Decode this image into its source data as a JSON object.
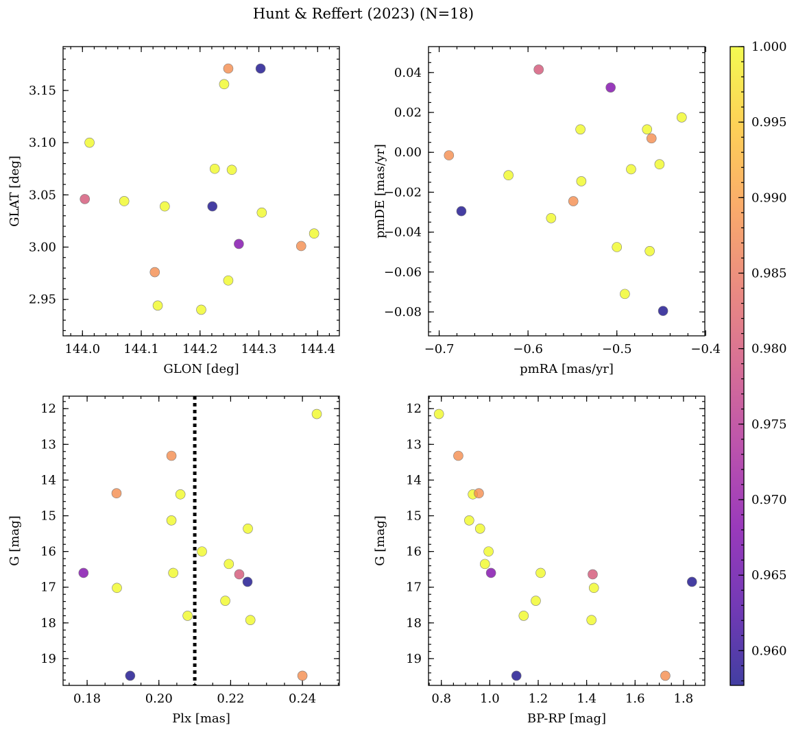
{
  "chart_data": {
    "type": "scatter",
    "title": "Hunt & Reffert (2023) (N=18)",
    "colormap": "plasma",
    "colorbar": {
      "vmin": 0.9577,
      "vmax": 1.0,
      "ticks": [
        0.96,
        0.965,
        0.97,
        0.975,
        0.98,
        0.985,
        0.99,
        0.995,
        1.0
      ],
      "tick_labels": [
        "0.960",
        "0.965",
        "0.970",
        "0.975",
        "0.980",
        "0.985",
        "0.990",
        "0.995",
        "1.000"
      ]
    },
    "stars": [
      {
        "glon": 144.248,
        "glat": 3.171,
        "pmra": -0.549,
        "pmde": -0.0245,
        "plx": 0.2035,
        "g": 13.32,
        "bprp": 0.87,
        "c": 0.988
      },
      {
        "glon": 144.303,
        "glat": 3.171,
        "pmra": -0.448,
        "pmde": -0.0795,
        "plx": 0.2247,
        "g": 16.85,
        "bprp": 1.835,
        "c": 0.958
      },
      {
        "glon": 144.241,
        "glat": 3.156,
        "pmra": -0.54,
        "pmde": -0.0145,
        "plx": 0.206,
        "g": 14.4,
        "bprp": 0.93,
        "c": 1.0
      },
      {
        "glon": 144.012,
        "glat": 3.1,
        "pmra": -0.463,
        "pmde": -0.0495,
        "plx": 0.244,
        "g": 12.15,
        "bprp": 0.79,
        "c": 1.0
      },
      {
        "glon": 144.225,
        "glat": 3.075,
        "pmra": -0.484,
        "pmde": -0.0085,
        "plx": 0.212,
        "g": 16.0,
        "bprp": 0.995,
        "c": 1.0
      },
      {
        "glon": 144.254,
        "glat": 3.074,
        "pmra": -0.541,
        "pmde": 0.0115,
        "plx": 0.2195,
        "g": 16.35,
        "bprp": 0.98,
        "c": 1.0
      },
      {
        "glon": 144.004,
        "glat": 3.046,
        "pmra": -0.588,
        "pmde": 0.0415,
        "plx": 0.2224,
        "g": 16.64,
        "bprp": 1.425,
        "c": 0.98
      },
      {
        "glon": 144.071,
        "glat": 3.044,
        "pmra": -0.5,
        "pmde": -0.0475,
        "plx": 0.2185,
        "g": 17.38,
        "bprp": 1.19,
        "c": 1.0
      },
      {
        "glon": 144.14,
        "glat": 3.039,
        "pmra": -0.622,
        "pmde": -0.0115,
        "plx": 0.2035,
        "g": 15.13,
        "bprp": 0.915,
        "c": 1.0
      },
      {
        "glon": 144.221,
        "glat": 3.039,
        "pmra": -0.675,
        "pmde": -0.0295,
        "plx": 0.192,
        "g": 19.48,
        "bprp": 1.11,
        "c": 0.958
      },
      {
        "glon": 144.305,
        "glat": 3.033,
        "pmra": -0.574,
        "pmde": -0.033,
        "plx": 0.2255,
        "g": 17.92,
        "bprp": 1.42,
        "c": 1.0
      },
      {
        "glon": 144.394,
        "glat": 3.013,
        "pmra": -0.491,
        "pmde": -0.071,
        "plx": 0.204,
        "g": 16.6,
        "bprp": 1.21,
        "c": 1.0
      },
      {
        "glon": 144.266,
        "glat": 3.003,
        "pmra": -0.507,
        "pmde": 0.0325,
        "plx": 0.179,
        "g": 16.6,
        "bprp": 1.005,
        "c": 0.968
      },
      {
        "glon": 144.372,
        "glat": 3.001,
        "pmra": -0.689,
        "pmde": -0.0015,
        "plx": 0.24,
        "g": 19.48,
        "bprp": 1.725,
        "c": 0.988
      },
      {
        "glon": 144.123,
        "glat": 2.976,
        "pmra": -0.461,
        "pmde": 0.007,
        "plx": 0.1882,
        "g": 14.37,
        "bprp": 0.955,
        "c": 0.988
      },
      {
        "glon": 144.248,
        "glat": 2.968,
        "pmra": -0.427,
        "pmde": 0.0175,
        "plx": 0.2248,
        "g": 15.36,
        "bprp": 0.96,
        "c": 1.0
      },
      {
        "glon": 144.128,
        "glat": 2.944,
        "pmra": -0.466,
        "pmde": 0.0115,
        "plx": 0.1883,
        "g": 17.02,
        "bprp": 1.43,
        "c": 1.0
      },
      {
        "glon": 144.202,
        "glat": 2.94,
        "pmra": -0.452,
        "pmde": -0.006,
        "plx": 0.208,
        "g": 17.8,
        "bprp": 1.14,
        "c": 1.0
      }
    ],
    "panels": [
      {
        "name": "glon-glat",
        "x": "glon",
        "y": "glat",
        "xlabel": "GLON [deg]",
        "ylabel": "GLAT [deg]",
        "xlim": [
          143.967,
          144.437
        ],
        "ylim": [
          2.915,
          3.192
        ],
        "xticks": [
          144.0,
          144.1,
          144.2,
          144.3,
          144.4
        ],
        "xtick_labels": [
          "144.0",
          "144.1",
          "144.2",
          "144.3",
          "144.4"
        ],
        "yticks": [
          2.95,
          3.0,
          3.05,
          3.1,
          3.15
        ],
        "ytick_labels": [
          "2.95",
          "3.00",
          "3.05",
          "3.10",
          "3.15"
        ],
        "xminor": 0.02,
        "yminor": 0.01,
        "invert_y": false
      },
      {
        "name": "pmra-pmde",
        "x": "pmra",
        "y": "pmde",
        "xlabel": "pmRA [mas/yr]",
        "ylabel": "pmDE [mas/yr]",
        "xlim": [
          -0.712,
          -0.401
        ],
        "ylim": [
          -0.092,
          0.053
        ],
        "xticks": [
          -0.7,
          -0.6,
          -0.5,
          -0.4
        ],
        "xtick_labels": [
          "−0.7",
          "−0.6",
          "−0.5",
          "−0.4"
        ],
        "yticks": [
          -0.08,
          -0.06,
          -0.04,
          -0.02,
          0.0,
          0.02,
          0.04
        ],
        "ytick_labels": [
          "−0.08",
          "−0.06",
          "−0.04",
          "−0.02",
          "0.00",
          "0.02",
          "0.04"
        ],
        "xminor": 0.02,
        "yminor": 0.005,
        "invert_y": false
      },
      {
        "name": "plx-g",
        "x": "plx",
        "y": "g",
        "xlabel": "Plx [mas]",
        "ylabel": "G [mag]",
        "xlim": [
          0.1733,
          0.2503
        ],
        "ylim": [
          11.65,
          19.75
        ],
        "xticks": [
          0.18,
          0.2,
          0.22,
          0.24
        ],
        "xtick_labels": [
          "0.18",
          "0.20",
          "0.22",
          "0.24"
        ],
        "yticks": [
          12,
          13,
          14,
          15,
          16,
          17,
          18,
          19
        ],
        "ytick_labels": [
          "12",
          "13",
          "14",
          "15",
          "16",
          "17",
          "18",
          "19"
        ],
        "xminor": 0.005,
        "yminor": 0.2,
        "invert_y": true,
        "vline": {
          "x": 0.21,
          "style": "dotted"
        }
      },
      {
        "name": "bprp-g",
        "x": "bprp",
        "y": "g",
        "xlabel": "BP-RP [mag]",
        "ylabel": "G [mag]",
        "xlim": [
          0.747,
          1.888
        ],
        "ylim": [
          11.65,
          19.75
        ],
        "xticks": [
          0.8,
          1.0,
          1.2,
          1.4,
          1.6,
          1.8
        ],
        "xtick_labels": [
          "0.8",
          "1.0",
          "1.2",
          "1.4",
          "1.6",
          "1.8"
        ],
        "yticks": [
          12,
          13,
          14,
          15,
          16,
          17,
          18,
          19
        ],
        "ytick_labels": [
          "12",
          "13",
          "14",
          "15",
          "16",
          "17",
          "18",
          "19"
        ],
        "xminor": 0.05,
        "yminor": 0.2,
        "invert_y": true
      }
    ]
  }
}
